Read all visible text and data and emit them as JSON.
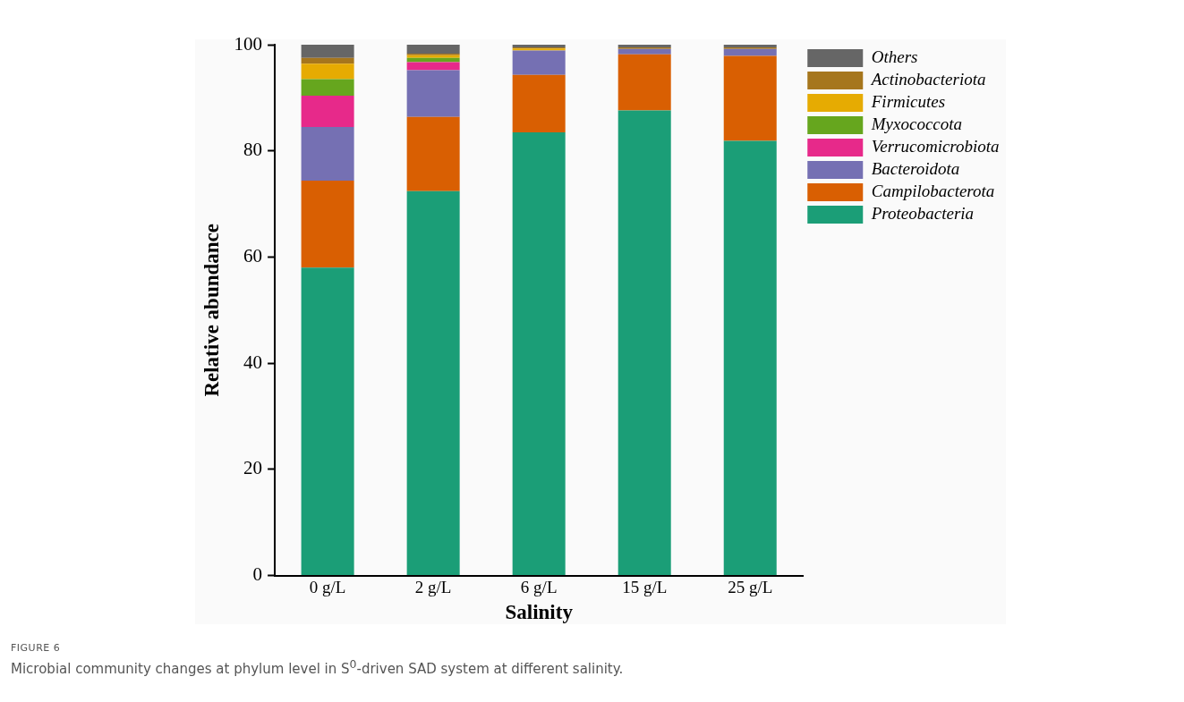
{
  "chart_data": {
    "type": "bar",
    "stacked": true,
    "xlabel": "Salinity",
    "ylabel": "Relative abundance",
    "categories": [
      "0 g/L",
      "2 g/L",
      "6 g/L",
      "15 g/L",
      "25 g/L"
    ],
    "series": [
      {
        "name": "Proteobacteria",
        "color": "#1b9e77",
        "values": [
          58.0,
          72.4,
          83.5,
          87.6,
          81.9
        ]
      },
      {
        "name": "Campilobacterota",
        "color": "#d95f02",
        "values": [
          16.4,
          14.0,
          10.8,
          10.6,
          16.0
        ]
      },
      {
        "name": "Bacteroidota",
        "color": "#7570b3",
        "values": [
          10.1,
          8.8,
          4.6,
          1.0,
          1.3
        ]
      },
      {
        "name": "Verrucomicrobiota",
        "color": "#e7298a",
        "values": [
          5.9,
          1.5,
          0,
          0,
          0
        ]
      },
      {
        "name": "Myxococcota",
        "color": "#66a61e",
        "values": [
          3.1,
          0.8,
          0,
          0,
          0
        ]
      },
      {
        "name": "Firmicutes",
        "color": "#e6ab02",
        "values": [
          2.9,
          0.5,
          0.4,
          0,
          0
        ]
      },
      {
        "name": "Actinobacteriota",
        "color": "#a6761d",
        "values": [
          1.1,
          0.3,
          0.2,
          0.3,
          0.3
        ]
      },
      {
        "name": "Others",
        "color": "#666666",
        "values": [
          2.5,
          1.7,
          0.5,
          0.5,
          0.5
        ]
      }
    ],
    "ylim": [
      0,
      100
    ],
    "yticks": [
      0,
      20,
      40,
      60,
      80,
      100
    ],
    "grid": false,
    "legend": "top right",
    "annotations": [
      "FIGURE 6",
      "Microbial community changes at phylum level in S$^{0}$-driven SAD system at different salinity."
    ]
  }
}
